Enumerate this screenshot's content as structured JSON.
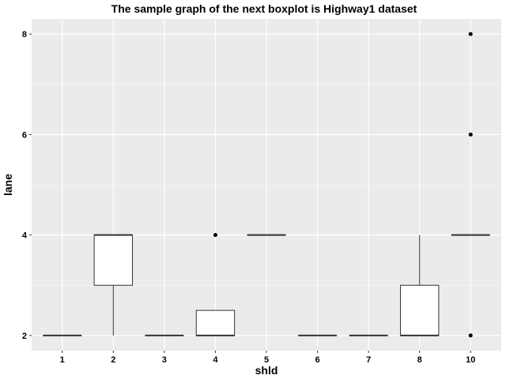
{
  "chart_data": {
    "type": "boxplot",
    "title": "The sample graph of the next boxplot is Highway1 dataset",
    "xlabel": "shld",
    "ylabel": "lane",
    "categories": [
      "1",
      "2",
      "3",
      "4",
      "5",
      "6",
      "7",
      "8",
      "10"
    ],
    "ylim": [
      1.7,
      8.3
    ],
    "yticks": [
      2,
      4,
      6,
      8
    ],
    "grid": true,
    "boxes": [
      {
        "category": "1",
        "lower_whisker": 2,
        "q1": 2,
        "median": 2,
        "q3": 2,
        "upper_whisker": 2,
        "outliers": []
      },
      {
        "category": "2",
        "lower_whisker": 2,
        "q1": 3,
        "median": 4,
        "q3": 4,
        "upper_whisker": 4,
        "outliers": []
      },
      {
        "category": "3",
        "lower_whisker": 2,
        "q1": 2,
        "median": 2,
        "q3": 2,
        "upper_whisker": 2,
        "outliers": []
      },
      {
        "category": "4",
        "lower_whisker": 2,
        "q1": 2,
        "median": 2,
        "q3": 2.5,
        "upper_whisker": 2.5,
        "outliers": [
          4
        ]
      },
      {
        "category": "5",
        "lower_whisker": 4,
        "q1": 4,
        "median": 4,
        "q3": 4,
        "upper_whisker": 4,
        "outliers": []
      },
      {
        "category": "6",
        "lower_whisker": 2,
        "q1": 2,
        "median": 2,
        "q3": 2,
        "upper_whisker": 2,
        "outliers": []
      },
      {
        "category": "7",
        "lower_whisker": 2,
        "q1": 2,
        "median": 2,
        "q3": 2,
        "upper_whisker": 2,
        "outliers": []
      },
      {
        "category": "8",
        "lower_whisker": 2,
        "q1": 2,
        "median": 2,
        "q3": 3,
        "upper_whisker": 4,
        "outliers": []
      },
      {
        "category": "10",
        "lower_whisker": 4,
        "q1": 4,
        "median": 4,
        "q3": 4,
        "upper_whisker": 4,
        "outliers": [
          2,
          6,
          8
        ]
      }
    ],
    "colors": {
      "panel_background": "#ebebeb",
      "grid_major": "#ffffff",
      "box_fill": "#ffffff",
      "box_stroke": "#333333",
      "outlier": "#000000"
    }
  }
}
